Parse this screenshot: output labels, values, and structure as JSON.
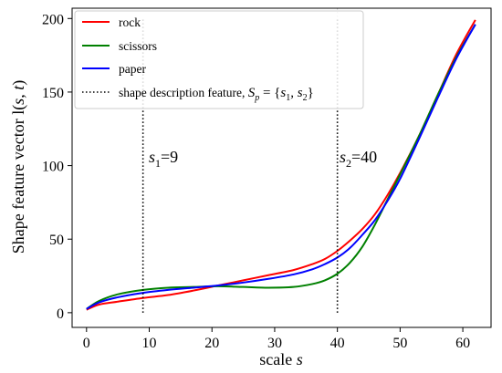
{
  "chart_data": {
    "type": "line",
    "xlabel": "scale s",
    "ylabel": "Shape feature vector l(s, t)",
    "xlim": [
      -2.3,
      64.5
    ],
    "ylim": [
      -10,
      207
    ],
    "xticks": [
      0,
      10,
      20,
      30,
      40,
      50,
      60
    ],
    "yticks": [
      0,
      50,
      100,
      150,
      200
    ],
    "grid": false,
    "legend_position": "top-left",
    "series": [
      {
        "name": "rock",
        "color": "#ff0000",
        "x": [
          0,
          2,
          5,
          9,
          13,
          17,
          21,
          25,
          29,
          33,
          36,
          38,
          40,
          42,
          44,
          46,
          48,
          50,
          53,
          56,
          59,
          62
        ],
        "y": [
          2,
          5.5,
          7.5,
          10,
          12,
          15,
          18.5,
          22,
          25.5,
          29,
          33,
          36.5,
          42,
          49,
          57,
          67,
          80,
          95,
          120,
          148,
          176,
          199
        ]
      },
      {
        "name": "scissors",
        "color": "#008000",
        "x": [
          0,
          2,
          5,
          9,
          13,
          17,
          21,
          25,
          29,
          33,
          36,
          38,
          40,
          42,
          44,
          46,
          48,
          50,
          53,
          56,
          59,
          62
        ],
        "y": [
          2.5,
          8,
          12.5,
          15.5,
          17,
          17.5,
          18,
          17.5,
          17,
          17.5,
          19.5,
          22,
          26.5,
          34,
          45,
          60,
          77,
          94,
          120,
          148,
          174,
          196
        ]
      },
      {
        "name": "paper",
        "color": "#0000ff",
        "x": [
          0,
          2,
          5,
          9,
          13,
          17,
          21,
          25,
          29,
          33,
          36,
          38,
          40,
          42,
          44,
          46,
          48,
          50,
          53,
          56,
          59,
          62
        ],
        "y": [
          2.5,
          7,
          10.5,
          13.5,
          15.5,
          17,
          18.5,
          20.5,
          23,
          26,
          29.5,
          33,
          37.5,
          44,
          53,
          63,
          76,
          91,
          118,
          146,
          173,
          196
        ]
      }
    ],
    "vlines": [
      {
        "x": 9,
        "style": "dotted",
        "label_main": "s",
        "label_sub": "1",
        "label_value": "=9"
      },
      {
        "x": 40,
        "style": "dotted",
        "label_main": "s",
        "label_sub": "2",
        "label_value": "=40"
      }
    ],
    "legend_extra_entry": "shape description feature, S_p = {s_1, s_2}"
  }
}
